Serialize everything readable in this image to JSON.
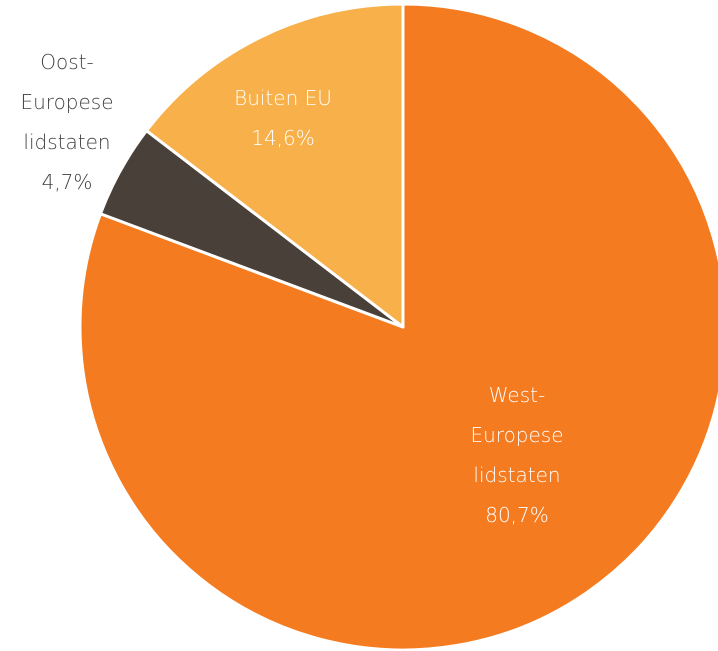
{
  "chart_data": {
    "type": "pie",
    "categories": [
      "West-\nEuropese\nlidstaten",
      "Oost-\nEuropese\nlidstaten",
      "Buiten EU"
    ],
    "values": [
      80.7,
      4.7,
      14.6
    ],
    "value_labels": [
      "80,7%",
      "4,7%",
      "14,6%"
    ],
    "colors": [
      "#f47b20",
      "#4a403a",
      "#f7b04a"
    ]
  }
}
